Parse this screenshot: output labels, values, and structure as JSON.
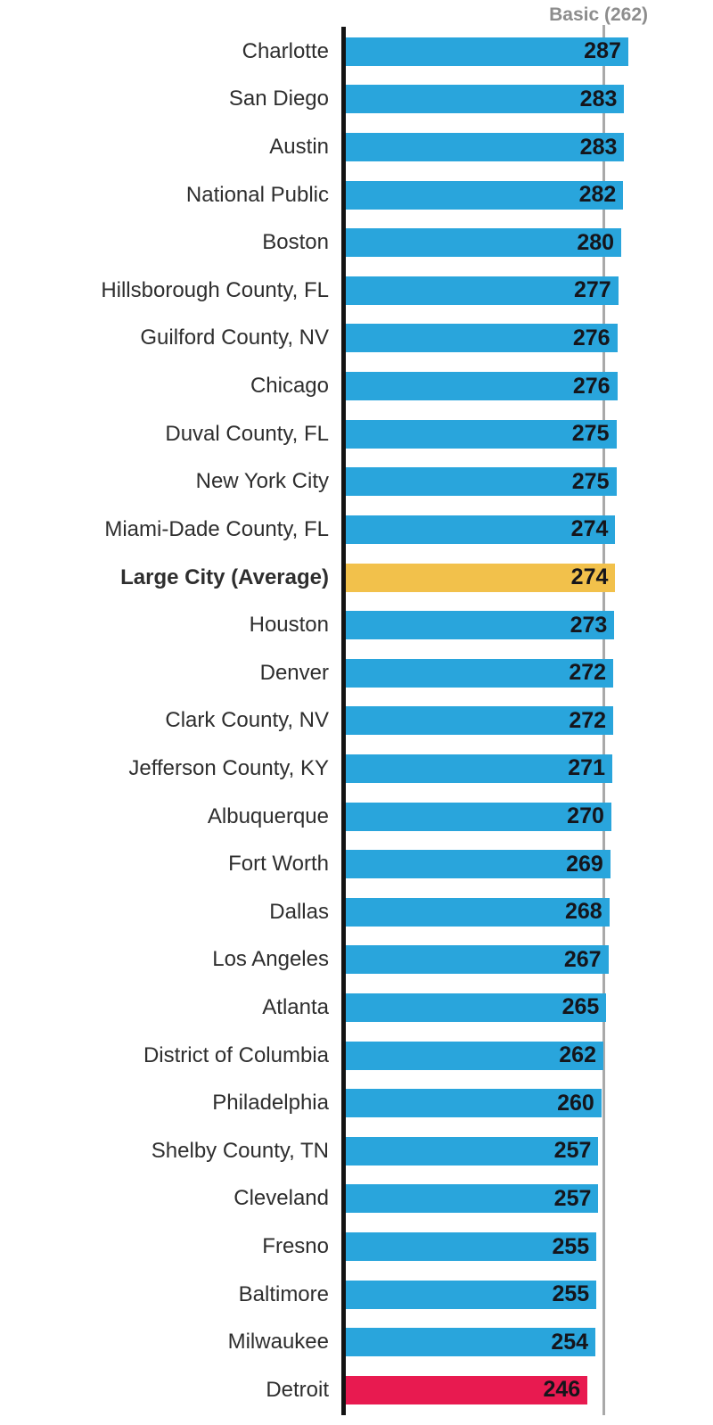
{
  "header": {
    "reference_label": "Basic (262)"
  },
  "palette": {
    "blue": "#29A5DC",
    "orange": "#F2C14B",
    "red": "#E81A50",
    "axis_line": "#131313",
    "reference_line": "#A9A9A9",
    "category_text": "#2E2E2E",
    "value_text": "#15151B",
    "reference_text": "#8D8D8D",
    "background": "#FFFFFF"
  },
  "rows": [
    {
      "label": "Charlotte",
      "value": 287,
      "color": "blue",
      "bold": false
    },
    {
      "label": "San Diego",
      "value": 283,
      "color": "blue",
      "bold": false
    },
    {
      "label": "Austin",
      "value": 283,
      "color": "blue",
      "bold": false
    },
    {
      "label": "National Public",
      "value": 282,
      "color": "blue",
      "bold": false
    },
    {
      "label": "Boston",
      "value": 280,
      "color": "blue",
      "bold": false
    },
    {
      "label": "Hillsborough County, FL",
      "value": 277,
      "color": "blue",
      "bold": false
    },
    {
      "label": "Guilford County, NV",
      "value": 276,
      "color": "blue",
      "bold": false
    },
    {
      "label": "Chicago",
      "value": 276,
      "color": "blue",
      "bold": false
    },
    {
      "label": "Duval County, FL",
      "value": 275,
      "color": "blue",
      "bold": false
    },
    {
      "label": "New York City",
      "value": 275,
      "color": "blue",
      "bold": false
    },
    {
      "label": "Miami-Dade County, FL",
      "value": 274,
      "color": "blue",
      "bold": false
    },
    {
      "label": "Large City (Average)",
      "value": 274,
      "color": "orange",
      "bold": true
    },
    {
      "label": "Houston",
      "value": 273,
      "color": "blue",
      "bold": false
    },
    {
      "label": "Denver",
      "value": 272,
      "color": "blue",
      "bold": false
    },
    {
      "label": "Clark County, NV",
      "value": 272,
      "color": "blue",
      "bold": false
    },
    {
      "label": "Jefferson County, KY",
      "value": 271,
      "color": "blue",
      "bold": false
    },
    {
      "label": "Albuquerque",
      "value": 270,
      "color": "blue",
      "bold": false
    },
    {
      "label": "Fort Worth",
      "value": 269,
      "color": "blue",
      "bold": false
    },
    {
      "label": "Dallas",
      "value": 268,
      "color": "blue",
      "bold": false
    },
    {
      "label": "Los Angeles",
      "value": 267,
      "color": "blue",
      "bold": false
    },
    {
      "label": "Atlanta",
      "value": 265,
      "color": "blue",
      "bold": false
    },
    {
      "label": "District of Columbia",
      "value": 262,
      "color": "blue",
      "bold": false
    },
    {
      "label": "Philadelphia",
      "value": 260,
      "color": "blue",
      "bold": false
    },
    {
      "label": "Shelby County, TN",
      "value": 257,
      "color": "blue",
      "bold": false
    },
    {
      "label": "Cleveland",
      "value": 257,
      "color": "blue",
      "bold": false
    },
    {
      "label": "Fresno",
      "value": 255,
      "color": "blue",
      "bold": false
    },
    {
      "label": "Baltimore",
      "value": 255,
      "color": "blue",
      "bold": false
    },
    {
      "label": "Milwaukee",
      "value": 254,
      "color": "blue",
      "bold": false
    },
    {
      "label": "Detroit",
      "value": 246,
      "color": "red",
      "bold": false
    }
  ],
  "chart_data": {
    "type": "bar",
    "orientation": "horizontal",
    "categories": [
      "Charlotte",
      "San Diego",
      "Austin",
      "National Public",
      "Boston",
      "Hillsborough County, FL",
      "Guilford County, NV",
      "Chicago",
      "Duval County, FL",
      "New York City",
      "Miami-Dade County, FL",
      "Large City (Average)",
      "Houston",
      "Denver",
      "Clark County, NV",
      "Jefferson County, KY",
      "Albuquerque",
      "Fort Worth",
      "Dallas",
      "Los Angeles",
      "Atlanta",
      "District of Columbia",
      "Philadelphia",
      "Shelby County, TN",
      "Cleveland",
      "Fresno",
      "Baltimore",
      "Milwaukee",
      "Detroit"
    ],
    "values": [
      287,
      283,
      283,
      282,
      280,
      277,
      276,
      276,
      275,
      275,
      274,
      274,
      273,
      272,
      272,
      271,
      270,
      269,
      268,
      267,
      265,
      262,
      260,
      257,
      257,
      255,
      255,
      254,
      246
    ],
    "reference_line": {
      "label": "Basic (262)",
      "value": 262
    },
    "value_axis_range": [
      0,
      287
    ],
    "data_labels": "inside-end",
    "grid": false,
    "legend": false,
    "highlights": {
      "Large City (Average)": "orange",
      "Detroit": "red",
      "default": "blue"
    }
  }
}
